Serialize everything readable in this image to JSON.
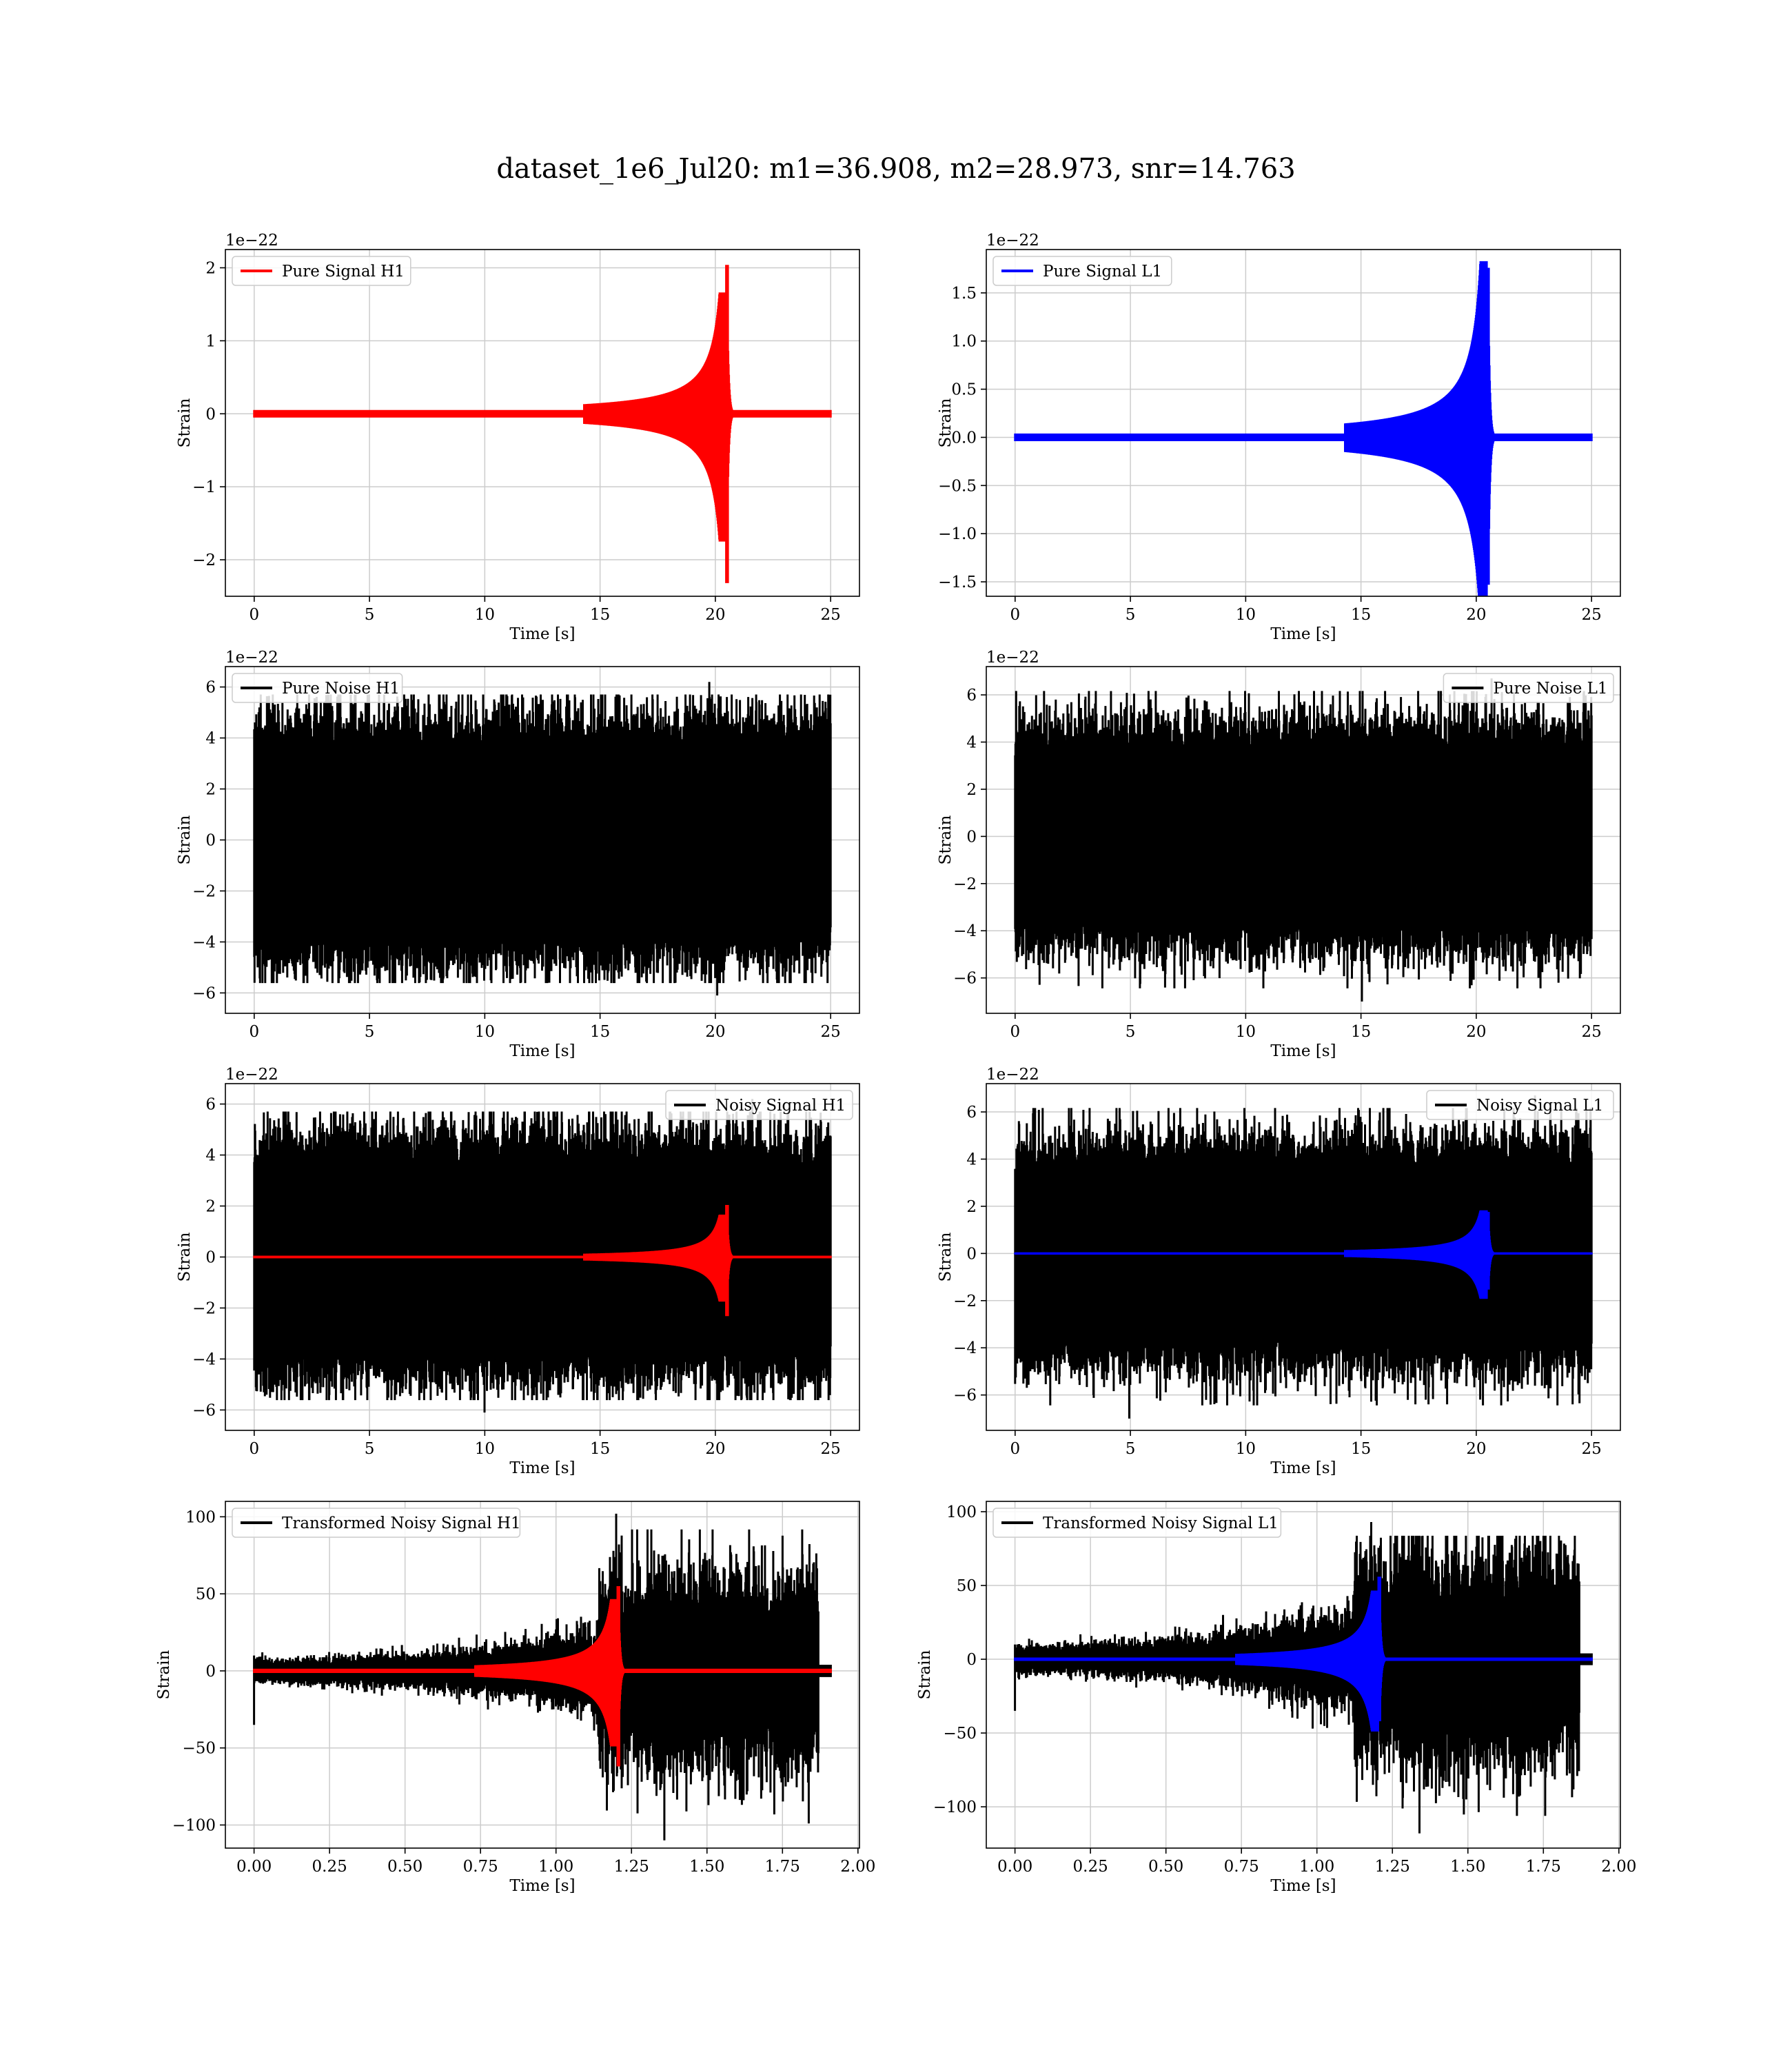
{
  "figure": {
    "title": "dataset_1e6_Jul20: m1=36.908, m2=28.973, snr=14.763"
  },
  "colors": {
    "h1_signal": "#ff0000",
    "l1_signal": "#0000ff",
    "noise": "#000000",
    "grid": "#cccccc"
  },
  "chart_data": [
    {
      "id": "pure-signal-h1",
      "type": "line",
      "xlabel": "Time [s]",
      "ylabel": "Strain",
      "offset_text": "1e−22",
      "xlim": [
        -1.25,
        26.25
      ],
      "ylim": [
        -2.5,
        2.25
      ],
      "xticks": [
        0,
        5,
        10,
        15,
        20,
        25
      ],
      "xtick_labels": [
        "0",
        "5",
        "10",
        "15",
        "20",
        "25"
      ],
      "yticks": [
        -2,
        -1,
        0,
        1,
        2
      ],
      "ytick_labels": [
        "−2",
        "−1",
        "0",
        "1",
        "2"
      ],
      "legend_position": "upper-left",
      "grid": true,
      "series": [
        {
          "name": "Pure Signal H1",
          "color": "#ff0000",
          "kind": "chirp",
          "t_start": 0,
          "t_end": 25,
          "t_merger": 20.55,
          "peak_pos": 2.04,
          "peak_neg": -2.32,
          "pre_merger_amp": 0.5
        }
      ]
    },
    {
      "id": "pure-signal-l1",
      "type": "line",
      "xlabel": "Time [s]",
      "ylabel": "Strain",
      "offset_text": "1e−22",
      "xlim": [
        -1.25,
        26.25
      ],
      "ylim": [
        -1.65,
        1.95
      ],
      "xticks": [
        0,
        5,
        10,
        15,
        20,
        25
      ],
      "xtick_labels": [
        "0",
        "5",
        "10",
        "15",
        "20",
        "25"
      ],
      "yticks": [
        -1.5,
        -1.0,
        -0.5,
        0.0,
        0.5,
        1.0,
        1.5
      ],
      "ytick_labels": [
        "−1.5",
        "−1.0",
        "−0.5",
        "0.0",
        "0.5",
        "1.0",
        "1.5"
      ],
      "legend_position": "upper-left",
      "grid": true,
      "series": [
        {
          "name": "Pure Signal L1",
          "color": "#0000ff",
          "kind": "chirp",
          "t_start": 0,
          "t_end": 25,
          "t_merger": 20.55,
          "peak_pos": 1.76,
          "peak_neg": -1.53,
          "pre_merger_amp": 0.55
        }
      ]
    },
    {
      "id": "pure-noise-h1",
      "type": "line",
      "xlabel": "Time [s]",
      "ylabel": "Strain",
      "offset_text": "1e−22",
      "xlim": [
        -1.25,
        26.25
      ],
      "ylim": [
        -6.8,
        6.8
      ],
      "xticks": [
        0,
        5,
        10,
        15,
        20,
        25
      ],
      "xtick_labels": [
        "0",
        "5",
        "10",
        "15",
        "20",
        "25"
      ],
      "yticks": [
        -6,
        -4,
        -2,
        0,
        2,
        4,
        6
      ],
      "ytick_labels": [
        "−6",
        "−4",
        "−2",
        "0",
        "2",
        "4",
        "6"
      ],
      "legend_position": "upper-left",
      "grid": true,
      "series": [
        {
          "name": "Pure Noise H1",
          "color": "#000000",
          "kind": "noise",
          "t_start": 0,
          "t_end": 25,
          "core_amp": 3.6,
          "peak_max": 6.2,
          "peak_min": -6.1
        }
      ]
    },
    {
      "id": "pure-noise-l1",
      "type": "line",
      "xlabel": "Time [s]",
      "ylabel": "Strain",
      "offset_text": "1e−22",
      "xlim": [
        -1.25,
        26.25
      ],
      "ylim": [
        -7.5,
        7.2
      ],
      "xticks": [
        0,
        5,
        10,
        15,
        20,
        25
      ],
      "xtick_labels": [
        "0",
        "5",
        "10",
        "15",
        "20",
        "25"
      ],
      "yticks": [
        -6,
        -4,
        -2,
        0,
        2,
        4,
        6
      ],
      "ytick_labels": [
        "−6",
        "−4",
        "−2",
        "0",
        "2",
        "4",
        "6"
      ],
      "legend_position": "upper-right",
      "grid": true,
      "series": [
        {
          "name": "Pure Noise L1",
          "color": "#000000",
          "kind": "noise",
          "t_start": 0,
          "t_end": 25,
          "core_amp": 3.6,
          "peak_max": 6.7,
          "peak_min": -7.0
        }
      ]
    },
    {
      "id": "noisy-signal-h1",
      "type": "line",
      "xlabel": "Time [s]",
      "ylabel": "Strain",
      "offset_text": "1e−22",
      "xlim": [
        -1.25,
        26.25
      ],
      "ylim": [
        -6.8,
        6.8
      ],
      "xticks": [
        0,
        5,
        10,
        15,
        20,
        25
      ],
      "xtick_labels": [
        "0",
        "5",
        "10",
        "15",
        "20",
        "25"
      ],
      "yticks": [
        -6,
        -4,
        -2,
        0,
        2,
        4,
        6
      ],
      "ytick_labels": [
        "−6",
        "−4",
        "−2",
        "0",
        "2",
        "4",
        "6"
      ],
      "legend_position": "upper-right",
      "grid": true,
      "series": [
        {
          "name": "Noisy Signal H1",
          "color": "#000000",
          "kind": "noise",
          "t_start": 0,
          "t_end": 25,
          "core_amp": 3.6,
          "peak_max": 6.2,
          "peak_min": -6.1
        },
        {
          "name": "",
          "color": "#ff0000",
          "kind": "chirp",
          "t_start": 0,
          "t_end": 25,
          "t_merger": 20.55,
          "peak_pos": 2.04,
          "peak_neg": -2.32,
          "pre_merger_amp": 0.5
        }
      ]
    },
    {
      "id": "noisy-signal-l1",
      "type": "line",
      "xlabel": "Time [s]",
      "ylabel": "Strain",
      "offset_text": "1e−22",
      "xlim": [
        -1.25,
        26.25
      ],
      "ylim": [
        -7.5,
        7.2
      ],
      "xticks": [
        0,
        5,
        10,
        15,
        20,
        25
      ],
      "xtick_labels": [
        "0",
        "5",
        "10",
        "15",
        "20",
        "25"
      ],
      "yticks": [
        -6,
        -4,
        -2,
        0,
        2,
        4,
        6
      ],
      "ytick_labels": [
        "−6",
        "−4",
        "−2",
        "0",
        "2",
        "4",
        "6"
      ],
      "legend_position": "upper-right",
      "grid": true,
      "series": [
        {
          "name": "Noisy Signal L1",
          "color": "#000000",
          "kind": "noise",
          "t_start": 0,
          "t_end": 25,
          "core_amp": 3.6,
          "peak_max": 6.7,
          "peak_min": -7.0
        },
        {
          "name": "",
          "color": "#0000ff",
          "kind": "chirp",
          "t_start": 0,
          "t_end": 25,
          "t_merger": 20.55,
          "peak_pos": 1.76,
          "peak_neg": -1.53,
          "pre_merger_amp": 0.55
        }
      ]
    },
    {
      "id": "transformed-noisy-signal-h1",
      "type": "line",
      "xlabel": "Time [s]",
      "ylabel": "Strain",
      "offset_text": "",
      "xlim": [
        -0.095,
        2.005
      ],
      "ylim": [
        -115,
        110
      ],
      "xticks": [
        0.0,
        0.25,
        0.5,
        0.75,
        1.0,
        1.25,
        1.5,
        1.75,
        2.0
      ],
      "xtick_labels": [
        "0.00",
        "0.25",
        "0.50",
        "0.75",
        "1.00",
        "1.25",
        "1.50",
        "1.75",
        "2.00"
      ],
      "yticks": [
        -100,
        -50,
        0,
        50,
        100
      ],
      "ytick_labels": [
        "−100",
        "−50",
        "0",
        "50",
        "100"
      ],
      "legend_position": "upper-left",
      "grid": true,
      "series": [
        {
          "name": "Transformed Noisy Signal H1",
          "color": "#000000",
          "kind": "whitened",
          "t_start": 0,
          "t_end": 1.91,
          "t_jump": 1.14,
          "low_amp": 8,
          "high_amp": 45,
          "peak_max": 102,
          "peak_min": -110
        },
        {
          "name": "",
          "color": "#ff0000",
          "kind": "chirp",
          "t_start": 0,
          "t_end": 1.91,
          "t_merger": 1.21,
          "peak_pos": 55,
          "peak_neg": -62,
          "pre_merger_amp": 14
        }
      ]
    },
    {
      "id": "transformed-noisy-signal-l1",
      "type": "line",
      "xlabel": "Time [s]",
      "ylabel": "Strain",
      "offset_text": "",
      "xlim": [
        -0.095,
        2.005
      ],
      "ylim": [
        -128,
        107
      ],
      "xticks": [
        0.0,
        0.25,
        0.5,
        0.75,
        1.0,
        1.25,
        1.5,
        1.75,
        2.0
      ],
      "xtick_labels": [
        "0.00",
        "0.25",
        "0.50",
        "0.75",
        "1.00",
        "1.25",
        "1.50",
        "1.75",
        "2.00"
      ],
      "yticks": [
        -100,
        -50,
        0,
        50,
        100
      ],
      "ytick_labels": [
        "−100",
        "−50",
        "0",
        "50",
        "100"
      ],
      "legend_position": "upper-left",
      "grid": true,
      "series": [
        {
          "name": "Transformed Noisy Signal L1",
          "color": "#000000",
          "kind": "whitened",
          "t_start": 0,
          "t_end": 1.91,
          "t_jump": 1.12,
          "low_amp": 10,
          "high_amp": 50,
          "peak_max": 93,
          "peak_min": -118
        },
        {
          "name": "",
          "color": "#0000ff",
          "kind": "chirp",
          "t_start": 0,
          "t_end": 1.91,
          "t_merger": 1.21,
          "peak_pos": 56,
          "peak_neg": -42,
          "pre_merger_amp": 14
        }
      ]
    }
  ]
}
